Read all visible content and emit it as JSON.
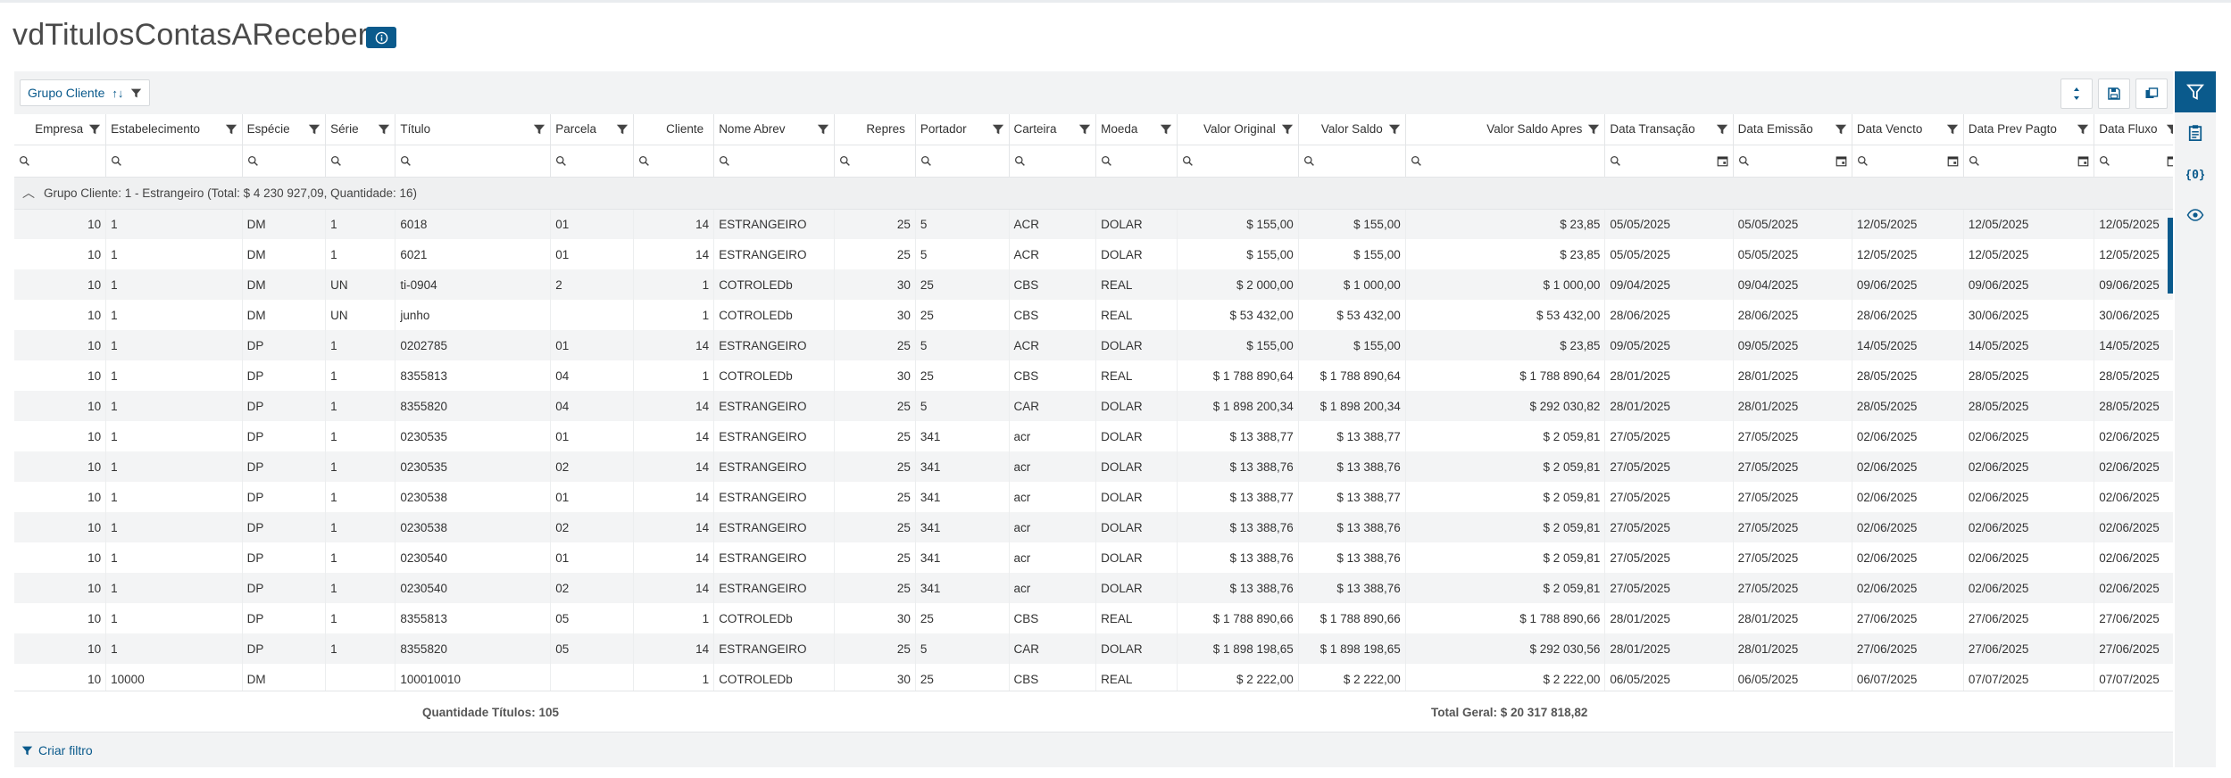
{
  "page": {
    "title": "vdTitulosContasAReceber"
  },
  "toolbar": {
    "group_label": "Grupo Cliente",
    "group_sort": "↑↓"
  },
  "columns": [
    {
      "label": "Empresa",
      "align": "right",
      "filter": true,
      "search": true
    },
    {
      "label": "Estabelecimento",
      "align": "left",
      "filter": true,
      "search": true
    },
    {
      "label": "Espécie",
      "align": "left",
      "filter": true,
      "search": true
    },
    {
      "label": "Série",
      "align": "left",
      "filter": true,
      "search": true
    },
    {
      "label": "Título",
      "align": "left",
      "filter": true,
      "search": true
    },
    {
      "label": "Parcela",
      "align": "left",
      "filter": true,
      "search": true
    },
    {
      "label": "Cliente",
      "align": "right",
      "filter": false,
      "search": true
    },
    {
      "label": "Nome Abrev",
      "align": "left",
      "filter": true,
      "search": true
    },
    {
      "label": "Repres",
      "align": "right",
      "filter": false,
      "search": true
    },
    {
      "label": "Portador",
      "align": "left",
      "filter": true,
      "search": true
    },
    {
      "label": "Carteira",
      "align": "left",
      "filter": true,
      "search": true
    },
    {
      "label": "Moeda",
      "align": "left",
      "filter": true,
      "search": true
    },
    {
      "label": "Valor Original",
      "align": "right",
      "filter": true,
      "search": true
    },
    {
      "label": "Valor Saldo",
      "align": "right",
      "filter": true,
      "search": true
    },
    {
      "label": "Valor Saldo Apres",
      "align": "right",
      "filter": true,
      "search": true
    },
    {
      "label": "Data Transação",
      "align": "left",
      "filter": true,
      "search": true,
      "calendar": true
    },
    {
      "label": "Data Emissão",
      "align": "left",
      "filter": true,
      "search": true,
      "calendar": true
    },
    {
      "label": "Data Vencto",
      "align": "left",
      "filter": true,
      "search": true,
      "calendar": true
    },
    {
      "label": "Data Prev Pagto",
      "align": "left",
      "filter": true,
      "search": true,
      "calendar": true
    },
    {
      "label": "Data Fluxo",
      "align": "left",
      "filter": true,
      "search": true,
      "calendar": true
    }
  ],
  "group": {
    "label": "Grupo Cliente: 1 - Estrangeiro (Total: $ 4 230 927,09, Quantidade: 16)"
  },
  "rows": [
    [
      "10",
      "1",
      "DM",
      "1",
      "6018",
      "01",
      "14",
      "ESTRANGEIRO",
      "25",
      "5",
      "ACR",
      "DOLAR",
      "$ 155,00",
      "$ 155,00",
      "$ 23,85",
      "05/05/2025",
      "05/05/2025",
      "12/05/2025",
      "12/05/2025",
      "12/05/2025"
    ],
    [
      "10",
      "1",
      "DM",
      "1",
      "6021",
      "01",
      "14",
      "ESTRANGEIRO",
      "25",
      "5",
      "ACR",
      "DOLAR",
      "$ 155,00",
      "$ 155,00",
      "$ 23,85",
      "05/05/2025",
      "05/05/2025",
      "12/05/2025",
      "12/05/2025",
      "12/05/2025"
    ],
    [
      "10",
      "1",
      "DM",
      "UN",
      "ti-0904",
      "2",
      "1",
      "COTROLEDb",
      "30",
      "25",
      "CBS",
      "REAL",
      "$ 2 000,00",
      "$ 1 000,00",
      "$ 1 000,00",
      "09/04/2025",
      "09/04/2025",
      "09/06/2025",
      "09/06/2025",
      "09/06/2025"
    ],
    [
      "10",
      "1",
      "DM",
      "UN",
      "junho",
      "",
      "1",
      "COTROLEDb",
      "30",
      "25",
      "CBS",
      "REAL",
      "$ 53 432,00",
      "$ 53 432,00",
      "$ 53 432,00",
      "28/06/2025",
      "28/06/2025",
      "28/06/2025",
      "30/06/2025",
      "30/06/2025"
    ],
    [
      "10",
      "1",
      "DP",
      "1",
      "0202785",
      "01",
      "14",
      "ESTRANGEIRO",
      "25",
      "5",
      "ACR",
      "DOLAR",
      "$ 155,00",
      "$ 155,00",
      "$ 23,85",
      "09/05/2025",
      "09/05/2025",
      "14/05/2025",
      "14/05/2025",
      "14/05/2025"
    ],
    [
      "10",
      "1",
      "DP",
      "1",
      "8355813",
      "04",
      "1",
      "COTROLEDb",
      "30",
      "25",
      "CBS",
      "REAL",
      "$ 1 788 890,64",
      "$ 1 788 890,64",
      "$ 1 788 890,64",
      "28/01/2025",
      "28/01/2025",
      "28/05/2025",
      "28/05/2025",
      "28/05/2025"
    ],
    [
      "10",
      "1",
      "DP",
      "1",
      "8355820",
      "04",
      "14",
      "ESTRANGEIRO",
      "25",
      "5",
      "CAR",
      "DOLAR",
      "$ 1 898 200,34",
      "$ 1 898 200,34",
      "$ 292 030,82",
      "28/01/2025",
      "28/01/2025",
      "28/05/2025",
      "28/05/2025",
      "28/05/2025"
    ],
    [
      "10",
      "1",
      "DP",
      "1",
      "0230535",
      "01",
      "14",
      "ESTRANGEIRO",
      "25",
      "341",
      "acr",
      "DOLAR",
      "$ 13 388,77",
      "$ 13 388,77",
      "$ 2 059,81",
      "27/05/2025",
      "27/05/2025",
      "02/06/2025",
      "02/06/2025",
      "02/06/2025"
    ],
    [
      "10",
      "1",
      "DP",
      "1",
      "0230535",
      "02",
      "14",
      "ESTRANGEIRO",
      "25",
      "341",
      "acr",
      "DOLAR",
      "$ 13 388,76",
      "$ 13 388,76",
      "$ 2 059,81",
      "27/05/2025",
      "27/05/2025",
      "02/06/2025",
      "02/06/2025",
      "02/06/2025"
    ],
    [
      "10",
      "1",
      "DP",
      "1",
      "0230538",
      "01",
      "14",
      "ESTRANGEIRO",
      "25",
      "341",
      "acr",
      "DOLAR",
      "$ 13 388,77",
      "$ 13 388,77",
      "$ 2 059,81",
      "27/05/2025",
      "27/05/2025",
      "02/06/2025",
      "02/06/2025",
      "02/06/2025"
    ],
    [
      "10",
      "1",
      "DP",
      "1",
      "0230538",
      "02",
      "14",
      "ESTRANGEIRO",
      "25",
      "341",
      "acr",
      "DOLAR",
      "$ 13 388,76",
      "$ 13 388,76",
      "$ 2 059,81",
      "27/05/2025",
      "27/05/2025",
      "02/06/2025",
      "02/06/2025",
      "02/06/2025"
    ],
    [
      "10",
      "1",
      "DP",
      "1",
      "0230540",
      "01",
      "14",
      "ESTRANGEIRO",
      "25",
      "341",
      "acr",
      "DOLAR",
      "$ 13 388,76",
      "$ 13 388,76",
      "$ 2 059,81",
      "27/05/2025",
      "27/05/2025",
      "02/06/2025",
      "02/06/2025",
      "02/06/2025"
    ],
    [
      "10",
      "1",
      "DP",
      "1",
      "0230540",
      "02",
      "14",
      "ESTRANGEIRO",
      "25",
      "341",
      "acr",
      "DOLAR",
      "$ 13 388,76",
      "$ 13 388,76",
      "$ 2 059,81",
      "27/05/2025",
      "27/05/2025",
      "02/06/2025",
      "02/06/2025",
      "02/06/2025"
    ],
    [
      "10",
      "1",
      "DP",
      "1",
      "8355813",
      "05",
      "1",
      "COTROLEDb",
      "30",
      "25",
      "CBS",
      "REAL",
      "$ 1 788 890,66",
      "$ 1 788 890,66",
      "$ 1 788 890,66",
      "28/01/2025",
      "28/01/2025",
      "27/06/2025",
      "27/06/2025",
      "27/06/2025"
    ],
    [
      "10",
      "1",
      "DP",
      "1",
      "8355820",
      "05",
      "14",
      "ESTRANGEIRO",
      "25",
      "5",
      "CAR",
      "DOLAR",
      "$ 1 898 198,65",
      "$ 1 898 198,65",
      "$ 292 030,56",
      "28/01/2025",
      "28/01/2025",
      "27/06/2025",
      "27/06/2025",
      "27/06/2025"
    ],
    [
      "10",
      "10000",
      "DM",
      "",
      "100010010",
      "",
      "1",
      "COTROLEDb",
      "30",
      "25",
      "CBS",
      "REAL",
      "$ 2 222,00",
      "$ 2 222,00",
      "$ 2 222,00",
      "06/05/2025",
      "06/05/2025",
      "06/07/2025",
      "07/07/2025",
      "07/07/2025"
    ]
  ],
  "summary": {
    "quantidade": "Quantidade Títulos: 105",
    "total": "Total Geral: $ 20 317 818,82"
  },
  "footer": {
    "criar_filtro": "Criar filtro"
  },
  "icons": {
    "info": "info-icon",
    "filter": "filter-icon",
    "search": "search-icon",
    "calendar": "calendar-icon",
    "expand_collapse": "expand-collapse-icon",
    "save": "save-icon",
    "copy": "copy-icon",
    "clipboard": "clipboard-icon",
    "braces": "braces-icon",
    "eye": "eye-icon",
    "chevron": "chevron-up-icon"
  },
  "colors": {
    "accent": "#0a5a8c",
    "panel": "#f2f3f4",
    "zebra": "#f3f4f5"
  }
}
